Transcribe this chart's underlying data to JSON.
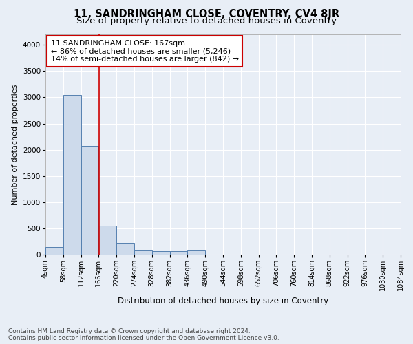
{
  "title": "11, SANDRINGHAM CLOSE, COVENTRY, CV4 8JR",
  "subtitle": "Size of property relative to detached houses in Coventry",
  "xlabel": "Distribution of detached houses by size in Coventry",
  "ylabel": "Number of detached properties",
  "footer_line1": "Contains HM Land Registry data © Crown copyright and database right 2024.",
  "footer_line2": "Contains public sector information licensed under the Open Government Licence v3.0.",
  "bin_edges": [
    4,
    58,
    112,
    166,
    220,
    274,
    328,
    382,
    436,
    490,
    544,
    598,
    652,
    706,
    760,
    814,
    868,
    922,
    976,
    1030,
    1084
  ],
  "bar_heights": [
    150,
    3050,
    2070,
    550,
    220,
    80,
    60,
    60,
    80,
    0,
    0,
    0,
    0,
    0,
    0,
    0,
    0,
    0,
    0,
    0
  ],
  "bar_color": "#cddaeb",
  "bar_edge_color": "#5580b0",
  "red_line_x": 167,
  "ylim_max": 4200,
  "yticks": [
    0,
    500,
    1000,
    1500,
    2000,
    2500,
    3000,
    3500,
    4000
  ],
  "annotation_text_line1": "11 SANDRINGHAM CLOSE: 167sqm",
  "annotation_text_line2": "← 86% of detached houses are smaller (5,246)",
  "annotation_text_line3": "14% of semi-detached houses are larger (842) →",
  "annotation_box_color": "#ffffff",
  "annotation_border_color": "#cc0000",
  "background_color": "#e8eef6",
  "grid_color": "#ffffff",
  "title_fontsize": 10.5,
  "subtitle_fontsize": 9.5,
  "tick_label_fontsize": 7,
  "axis_label_fontsize": 8.5,
  "annotation_fontsize": 8,
  "footer_fontsize": 6.5,
  "ylabel_fontsize": 8
}
